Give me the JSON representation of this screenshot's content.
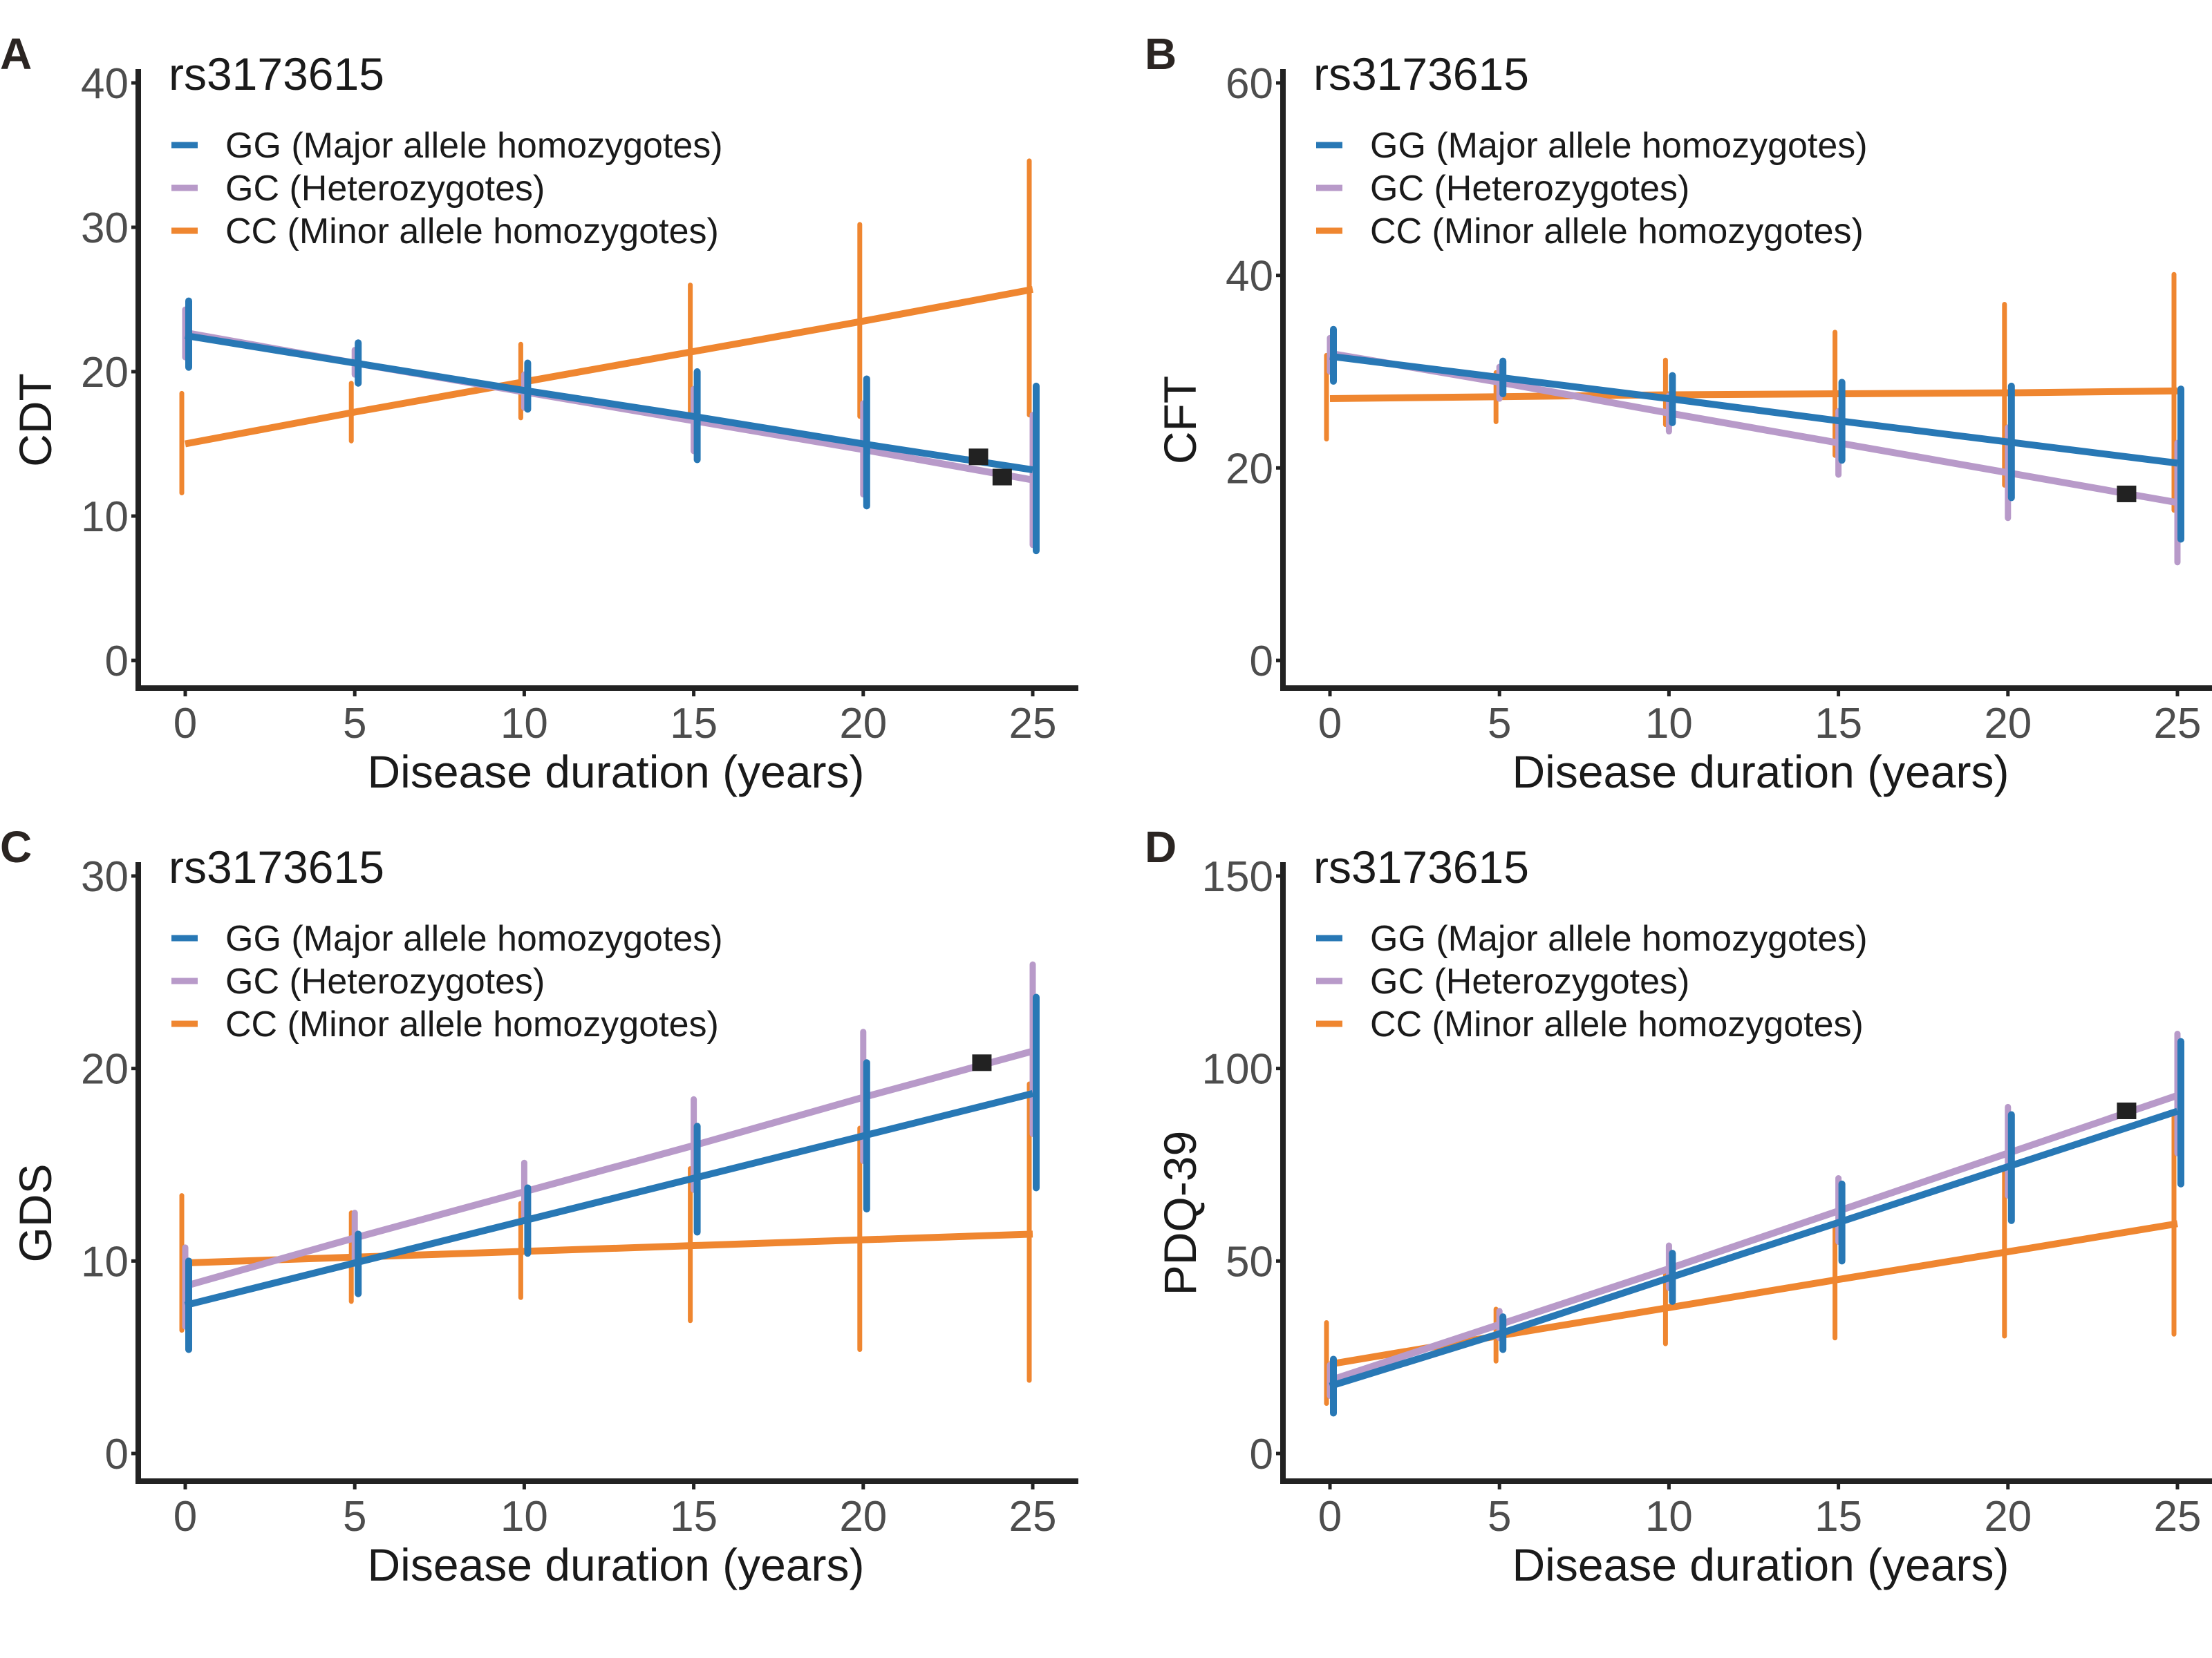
{
  "figure": {
    "colors": {
      "GG": "#2878b5",
      "GC": "#b89ac9",
      "CC": "#ef8630",
      "marker": "#222222",
      "axis": "#222222",
      "tick_text": "#4d4d4d"
    }
  },
  "chart_data": [
    {
      "panel": "A",
      "type": "line",
      "title": "rs3173615",
      "xlabel": "Disease duration (years)",
      "ylabel": "CDT",
      "xlim": [
        0,
        25
      ],
      "ylim": [
        0,
        40
      ],
      "xticks": [
        0,
        5,
        10,
        15,
        20,
        25
      ],
      "yticks": [
        0,
        10,
        20,
        30,
        40
      ],
      "grid": false,
      "legend_position": "top-left",
      "x": [
        0,
        5,
        10,
        15,
        20,
        25
      ],
      "series": [
        {
          "name": "GG (Major allele homozygotes)",
          "key": "GG",
          "values": [
            22.5,
            20.6,
            18.7,
            16.9,
            15.0,
            13.2
          ],
          "ci_low": [
            20.3,
            19.2,
            17.4,
            13.9,
            10.7,
            7.6
          ],
          "ci_high": [
            24.9,
            22.0,
            20.6,
            20.0,
            19.5,
            19.0
          ]
        },
        {
          "name": "GC (Heterozygotes)",
          "key": "GC",
          "values": [
            22.7,
            20.6,
            18.6,
            16.6,
            14.6,
            12.5
          ],
          "ci_low": [
            21.0,
            19.8,
            17.5,
            14.5,
            11.5,
            8.0
          ],
          "ci_high": [
            24.3,
            21.5,
            19.8,
            18.8,
            17.8,
            17.0
          ]
        },
        {
          "name": "CC (Minor allele homozygotes)",
          "key": "CC",
          "values": [
            15.0,
            17.2,
            19.3,
            21.4,
            23.5,
            25.7
          ],
          "ci_low": [
            11.6,
            15.2,
            16.8,
            16.8,
            16.9,
            17.0
          ],
          "ci_high": [
            18.5,
            19.2,
            21.9,
            26.0,
            30.2,
            34.6
          ]
        }
      ],
      "markers": [
        {
          "x": 23.4,
          "y": 14.1
        },
        {
          "x": 24.1,
          "y": 12.7
        }
      ]
    },
    {
      "panel": "B",
      "type": "line",
      "title": "rs3173615",
      "xlabel": "Disease duration (years)",
      "ylabel": "CFT",
      "xlim": [
        0,
        25
      ],
      "ylim": [
        0,
        60
      ],
      "xticks": [
        0,
        5,
        10,
        15,
        20,
        25
      ],
      "yticks": [
        0,
        20,
        40,
        60
      ],
      "grid": false,
      "legend_position": "top-left",
      "x": [
        0,
        5,
        10,
        15,
        20,
        25
      ],
      "series": [
        {
          "name": "GG (Major allele homozygotes)",
          "key": "GG",
          "values": [
            31.6,
            29.4,
            27.2,
            24.9,
            22.7,
            20.5
          ],
          "ci_low": [
            29.0,
            27.7,
            24.7,
            20.8,
            16.9,
            12.6
          ],
          "ci_high": [
            34.4,
            31.1,
            29.6,
            28.9,
            28.5,
            28.2
          ]
        },
        {
          "name": "GC (Heterozygotes)",
          "key": "GC",
          "values": [
            31.9,
            28.9,
            25.7,
            22.6,
            19.5,
            16.4
          ],
          "ci_low": [
            30.0,
            27.2,
            23.8,
            19.3,
            14.8,
            10.2
          ],
          "ci_high": [
            33.5,
            30.5,
            27.5,
            25.9,
            24.2,
            22.6
          ]
        },
        {
          "name": "CC (Minor allele homozygotes)",
          "key": "CC",
          "values": [
            27.2,
            27.4,
            27.6,
            27.7,
            27.8,
            28.0
          ],
          "ci_low": [
            23.0,
            24.8,
            24.5,
            21.3,
            18.2,
            15.6
          ],
          "ci_high": [
            31.7,
            29.9,
            31.2,
            34.1,
            37.0,
            40.1
          ]
        }
      ],
      "markers": [
        {
          "x": 23.5,
          "y": 17.3
        }
      ]
    },
    {
      "panel": "C",
      "type": "line",
      "title": "rs3173615",
      "xlabel": "Disease duration (years)",
      "ylabel": "GDS",
      "xlim": [
        0,
        25
      ],
      "ylim": [
        0,
        30
      ],
      "xticks": [
        0,
        5,
        10,
        15,
        20,
        25
      ],
      "yticks": [
        0,
        10,
        20,
        30
      ],
      "grid": false,
      "legend_position": "top-left",
      "x": [
        0,
        5,
        10,
        15,
        20,
        25
      ],
      "series": [
        {
          "name": "GG (Major allele homozygotes)",
          "key": "GG",
          "values": [
            7.7,
            9.9,
            12.1,
            14.3,
            16.5,
            18.7
          ],
          "ci_low": [
            5.4,
            8.3,
            10.4,
            11.5,
            12.7,
            13.8
          ],
          "ci_high": [
            10.0,
            11.4,
            13.8,
            17.0,
            20.3,
            23.7
          ]
        },
        {
          "name": "GC (Heterozygotes)",
          "key": "GC",
          "values": [
            8.7,
            11.2,
            13.6,
            16.0,
            18.5,
            20.9
          ],
          "ci_low": [
            6.6,
            9.9,
            12.2,
            13.7,
            15.2,
            16.6
          ],
          "ci_high": [
            10.7,
            12.5,
            15.1,
            18.4,
            21.9,
            25.4
          ]
        },
        {
          "name": "CC (Minor allele homozygotes)",
          "key": "CC",
          "values": [
            9.9,
            10.2,
            10.5,
            10.8,
            11.1,
            11.4
          ],
          "ci_low": [
            6.4,
            7.9,
            8.1,
            6.9,
            5.4,
            3.8
          ],
          "ci_high": [
            13.4,
            12.5,
            13.0,
            14.8,
            16.9,
            19.2
          ]
        }
      ],
      "markers": [
        {
          "x": 23.5,
          "y": 20.3
        }
      ]
    },
    {
      "panel": "D",
      "type": "line",
      "title": "rs3173615",
      "xlabel": "Disease duration (years)",
      "ylabel": "PDQ-39",
      "xlim": [
        0,
        25
      ],
      "ylim": [
        0,
        150
      ],
      "xticks": [
        0,
        5,
        10,
        15,
        20,
        25
      ],
      "yticks": [
        0,
        50,
        100,
        150
      ],
      "grid": false,
      "legend_position": "top-left",
      "x": [
        0,
        5,
        10,
        15,
        20,
        25
      ],
      "series": [
        {
          "name": "GG (Major allele homozygotes)",
          "key": "GG",
          "values": [
            17.5,
            31.1,
            45.6,
            60.0,
            74.5,
            88.9
          ],
          "ci_low": [
            10.5,
            27.0,
            39.5,
            50.0,
            60.5,
            70.0
          ],
          "ci_high": [
            24.5,
            35.5,
            52.0,
            70.0,
            88.0,
            107.0
          ]
        },
        {
          "name": "GC (Heterozygotes)",
          "key": "GC",
          "values": [
            19.0,
            33.5,
            48.0,
            63.0,
            78.0,
            93.0
          ],
          "ci_low": [
            15.0,
            30.0,
            43.0,
            55.0,
            67.0,
            78.0
          ],
          "ci_high": [
            23.0,
            37.0,
            54.0,
            71.5,
            90.0,
            109.0
          ]
        },
        {
          "name": "CC (Minor allele homozygotes)",
          "key": "CC",
          "values": [
            23.2,
            30.6,
            37.9,
            45.2,
            52.4,
            59.7
          ],
          "ci_low": [
            13.0,
            24.0,
            28.5,
            30.0,
            30.5,
            31.0
          ],
          "ci_high": [
            34.0,
            37.5,
            47.0,
            60.0,
            74.0,
            88.0
          ]
        }
      ],
      "markers": [
        {
          "x": 23.5,
          "y": 89.0
        }
      ]
    }
  ]
}
